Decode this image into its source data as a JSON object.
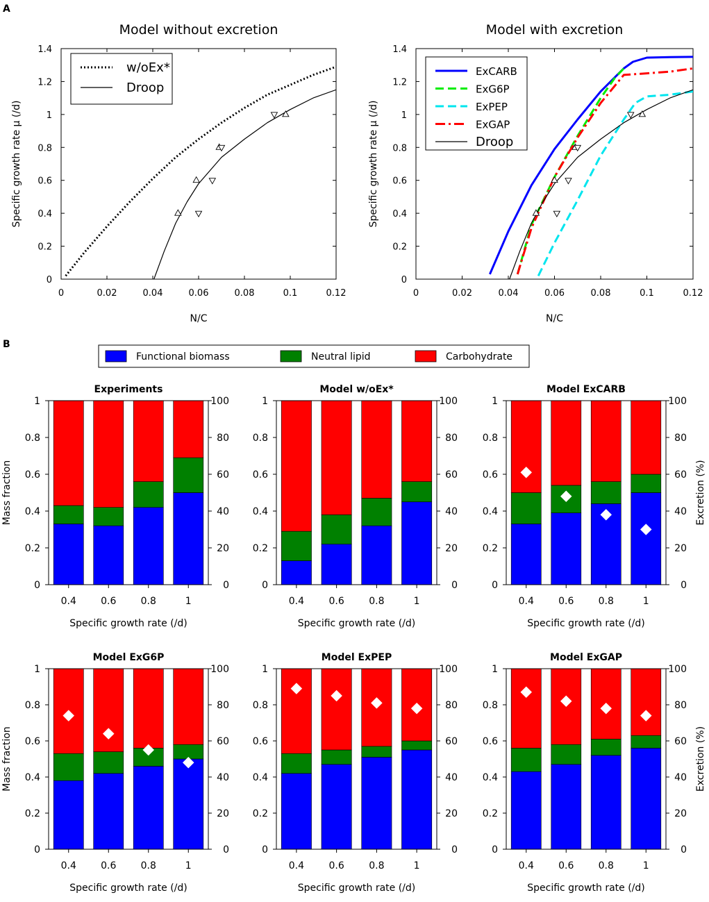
{
  "panel_labels": {
    "a": "A",
    "b": "B"
  },
  "legend_b": [
    {
      "label": "Functional biomass",
      "color": "#0000ff"
    },
    {
      "label": "Neutral lipid",
      "color": "#008000"
    },
    {
      "label": "Carbohydrate",
      "color": "#ff0000"
    }
  ],
  "chart_data": [
    {
      "id": "a1",
      "type": "line",
      "title": "Model without excretion",
      "xlabel": "N/C",
      "ylabel": "Specific growth rate μ (/d)",
      "xlim": [
        0,
        0.12
      ],
      "ylim": [
        0,
        1.4
      ],
      "xticks": [
        0,
        0.02,
        0.04,
        0.06,
        0.08,
        0.1,
        0.12
      ],
      "xtick_labels": [
        "0",
        "0.02",
        "0.04",
        "0.06",
        "0.08",
        "0.1",
        "0.12"
      ],
      "yticks": [
        0,
        0.2,
        0.4,
        0.6,
        0.8,
        1,
        1.2,
        1.4
      ],
      "ytick_labels": [
        "0",
        "0.2",
        "0.4",
        "0.6",
        "0.8",
        "1",
        "1.2",
        "1.4"
      ],
      "series": [
        {
          "name": "w/oEx*",
          "style": "dotted",
          "color": "#000000",
          "x": [
            0.002,
            0.01,
            0.02,
            0.03,
            0.04,
            0.05,
            0.06,
            0.07,
            0.08,
            0.09,
            0.1,
            0.11,
            0.12
          ],
          "y": [
            0.02,
            0.16,
            0.32,
            0.47,
            0.61,
            0.74,
            0.85,
            0.95,
            1.04,
            1.12,
            1.18,
            1.24,
            1.29
          ]
        },
        {
          "name": "Droop",
          "style": "solid",
          "color": "#000000",
          "x": [
            0.0405,
            0.045,
            0.05,
            0.055,
            0.06,
            0.07,
            0.08,
            0.09,
            0.1,
            0.11,
            0.12
          ],
          "y": [
            0,
            0.17,
            0.34,
            0.47,
            0.58,
            0.74,
            0.85,
            0.95,
            1.03,
            1.1,
            1.15
          ]
        }
      ],
      "points_up": [
        [
          0.051,
          0.4
        ],
        [
          0.059,
          0.6
        ],
        [
          0.069,
          0.8
        ],
        [
          0.098,
          1.0
        ]
      ],
      "points_down": [
        [
          0.06,
          0.4
        ],
        [
          0.066,
          0.6
        ],
        [
          0.07,
          0.8
        ],
        [
          0.093,
          1.0
        ]
      ]
    },
    {
      "id": "a2",
      "type": "line",
      "title": "Model with excretion",
      "xlabel": "N/C",
      "ylabel": "Specific growth rate μ (/d)",
      "xlim": [
        0,
        0.12
      ],
      "ylim": [
        0,
        1.4
      ],
      "xticks": [
        0,
        0.02,
        0.04,
        0.06,
        0.08,
        0.1,
        0.12
      ],
      "xtick_labels": [
        "0",
        "0.02",
        "0.04",
        "0.06",
        "0.08",
        "0.1",
        "0.12"
      ],
      "yticks": [
        0,
        0.2,
        0.4,
        0.6,
        0.8,
        1,
        1.2,
        1.4
      ],
      "ytick_labels": [
        "0",
        "0.2",
        "0.4",
        "0.6",
        "0.8",
        "1",
        "1.2",
        "1.4"
      ],
      "series": [
        {
          "name": "ExCARB",
          "style": "solid-thick",
          "color": "#0000ff",
          "x": [
            0.032,
            0.04,
            0.05,
            0.06,
            0.07,
            0.08,
            0.09,
            0.094,
            0.1,
            0.11,
            0.12
          ],
          "y": [
            0.03,
            0.29,
            0.57,
            0.79,
            0.97,
            1.14,
            1.28,
            1.32,
            1.345,
            1.348,
            1.35
          ]
        },
        {
          "name": "ExG6P",
          "style": "dashed",
          "color": "#00ee00",
          "x": [
            0.044,
            0.05,
            0.06,
            0.07,
            0.08,
            0.086,
            0.09
          ],
          "y": [
            0.03,
            0.33,
            0.62,
            0.87,
            1.1,
            1.22,
            1.28
          ]
        },
        {
          "name": "ExPEP",
          "style": "dashed",
          "color": "#00e5ee",
          "x": [
            0.053,
            0.06,
            0.07,
            0.08,
            0.09,
            0.095,
            0.1,
            0.11,
            0.12
          ],
          "y": [
            0.02,
            0.22,
            0.48,
            0.75,
            0.97,
            1.07,
            1.11,
            1.12,
            1.14
          ]
        },
        {
          "name": "ExGAP",
          "style": "dashdot",
          "color": "#ff0000",
          "x": [
            0.044,
            0.05,
            0.06,
            0.07,
            0.08,
            0.09,
            0.1,
            0.11,
            0.12
          ],
          "y": [
            0.03,
            0.31,
            0.62,
            0.86,
            1.07,
            1.24,
            1.25,
            1.26,
            1.28
          ]
        },
        {
          "name": "Droop",
          "style": "solid",
          "color": "#000000",
          "x": [
            0.0405,
            0.045,
            0.05,
            0.055,
            0.06,
            0.07,
            0.08,
            0.09,
            0.1,
            0.11,
            0.12
          ],
          "y": [
            0,
            0.17,
            0.34,
            0.47,
            0.58,
            0.74,
            0.85,
            0.95,
            1.03,
            1.1,
            1.15
          ]
        }
      ],
      "points_up": [
        [
          0.052,
          0.4
        ],
        [
          0.06,
          0.6
        ],
        [
          0.069,
          0.8
        ],
        [
          0.098,
          1.0
        ]
      ],
      "points_down": [
        [
          0.061,
          0.4
        ],
        [
          0.066,
          0.6
        ],
        [
          0.07,
          0.8
        ],
        [
          0.093,
          1.0
        ]
      ]
    },
    {
      "id": "b1",
      "type": "bar",
      "title": "Experiments",
      "categories": [
        "0.4",
        "0.6",
        "0.8",
        "1"
      ],
      "xlabel": "Specific growth rate (/d)",
      "ylabel": "Mass fraction",
      "y2label": "",
      "ylim": [
        0,
        1
      ],
      "y2lim": [
        0,
        100
      ],
      "yticks": [
        "0",
        "0.2",
        "0.4",
        "0.6",
        "0.8",
        "1"
      ],
      "y2ticks": [
        "0",
        "20",
        "40",
        "60",
        "80",
        "100"
      ],
      "series": [
        {
          "name": "Functional biomass",
          "values": [
            0.33,
            0.32,
            0.42,
            0.5
          ]
        },
        {
          "name": "Neutral lipid",
          "values": [
            0.1,
            0.1,
            0.14,
            0.19
          ]
        },
        {
          "name": "Carbohydrate",
          "values": [
            0.57,
            0.58,
            0.44,
            0.31
          ]
        }
      ],
      "excretion": []
    },
    {
      "id": "b2",
      "type": "bar",
      "title": "Model w/oEx*",
      "categories": [
        "0.4",
        "0.6",
        "0.8",
        "1"
      ],
      "xlabel": "Specific growth rate (/d)",
      "ylabel": "",
      "y2label": "",
      "ylim": [
        0,
        1
      ],
      "y2lim": [
        0,
        100
      ],
      "yticks": [
        "0",
        "0.2",
        "0.4",
        "0.6",
        "0.8",
        "1"
      ],
      "y2ticks": [
        "0",
        "20",
        "40",
        "60",
        "80",
        "100"
      ],
      "series": [
        {
          "name": "Functional biomass",
          "values": [
            0.13,
            0.22,
            0.32,
            0.45
          ]
        },
        {
          "name": "Neutral lipid",
          "values": [
            0.16,
            0.16,
            0.15,
            0.11
          ]
        },
        {
          "name": "Carbohydrate",
          "values": [
            0.71,
            0.62,
            0.53,
            0.44
          ]
        }
      ],
      "excretion": []
    },
    {
      "id": "b3",
      "type": "bar",
      "title": "Model ExCARB",
      "categories": [
        "0.4",
        "0.6",
        "0.8",
        "1"
      ],
      "xlabel": "Specific growth rate (/d)",
      "ylabel": "",
      "y2label": "Excretion (%)",
      "ylim": [
        0,
        1
      ],
      "y2lim": [
        0,
        100
      ],
      "yticks": [
        "0",
        "0.2",
        "0.4",
        "0.6",
        "0.8",
        "1"
      ],
      "y2ticks": [
        "0",
        "20",
        "40",
        "60",
        "80",
        "100"
      ],
      "series": [
        {
          "name": "Functional biomass",
          "values": [
            0.33,
            0.39,
            0.44,
            0.5
          ]
        },
        {
          "name": "Neutral lipid",
          "values": [
            0.17,
            0.15,
            0.12,
            0.1
          ]
        },
        {
          "name": "Carbohydrate",
          "values": [
            0.5,
            0.46,
            0.44,
            0.4
          ]
        }
      ],
      "excretion": [
        61,
        48,
        38,
        30
      ]
    },
    {
      "id": "b4",
      "type": "bar",
      "title": "Model ExG6P",
      "categories": [
        "0.4",
        "0.6",
        "0.8",
        "1"
      ],
      "xlabel": "Specific growth rate (/d)",
      "ylabel": "Mass fraction",
      "y2label": "",
      "ylim": [
        0,
        1
      ],
      "y2lim": [
        0,
        100
      ],
      "yticks": [
        "0",
        "0.2",
        "0.4",
        "0.6",
        "0.8",
        "1"
      ],
      "y2ticks": [
        "0",
        "20",
        "40",
        "60",
        "80",
        "100"
      ],
      "series": [
        {
          "name": "Functional biomass",
          "values": [
            0.38,
            0.42,
            0.46,
            0.5
          ]
        },
        {
          "name": "Neutral lipid",
          "values": [
            0.15,
            0.12,
            0.1,
            0.08
          ]
        },
        {
          "name": "Carbohydrate",
          "values": [
            0.47,
            0.46,
            0.44,
            0.42
          ]
        }
      ],
      "excretion": [
        74,
        64,
        55,
        48
      ]
    },
    {
      "id": "b5",
      "type": "bar",
      "title": "Model ExPEP",
      "categories": [
        "0.4",
        "0.6",
        "0.8",
        "1"
      ],
      "xlabel": "Specific growth rate (/d)",
      "ylabel": "",
      "y2label": "",
      "ylim": [
        0,
        1
      ],
      "y2lim": [
        0,
        100
      ],
      "yticks": [
        "0",
        "0.2",
        "0.4",
        "0.6",
        "0.8",
        "1"
      ],
      "y2ticks": [
        "0",
        "20",
        "40",
        "60",
        "80",
        "100"
      ],
      "series": [
        {
          "name": "Functional biomass",
          "values": [
            0.42,
            0.47,
            0.51,
            0.55
          ]
        },
        {
          "name": "Neutral lipid",
          "values": [
            0.11,
            0.08,
            0.06,
            0.05
          ]
        },
        {
          "name": "Carbohydrate",
          "values": [
            0.47,
            0.45,
            0.43,
            0.4
          ]
        }
      ],
      "excretion": [
        89,
        85,
        81,
        78
      ]
    },
    {
      "id": "b6",
      "type": "bar",
      "title": "Model ExGAP",
      "categories": [
        "0.4",
        "0.6",
        "0.8",
        "1"
      ],
      "xlabel": "Specific growth rate (/d)",
      "ylabel": "",
      "y2label": "Excretion (%)",
      "ylim": [
        0,
        1
      ],
      "y2lim": [
        0,
        100
      ],
      "yticks": [
        "0",
        "0.2",
        "0.4",
        "0.6",
        "0.8",
        "1"
      ],
      "y2ticks": [
        "0",
        "20",
        "40",
        "60",
        "80",
        "100"
      ],
      "series": [
        {
          "name": "Functional biomass",
          "values": [
            0.43,
            0.47,
            0.52,
            0.56
          ]
        },
        {
          "name": "Neutral lipid",
          "values": [
            0.13,
            0.11,
            0.09,
            0.07
          ]
        },
        {
          "name": "Carbohydrate",
          "values": [
            0.44,
            0.42,
            0.39,
            0.37
          ]
        }
      ],
      "excretion": [
        87,
        82,
        78,
        74
      ]
    }
  ]
}
